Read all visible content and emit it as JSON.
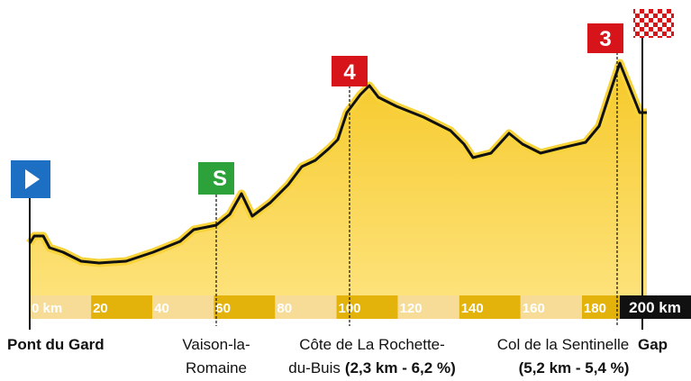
{
  "profile": {
    "scale": [
      "0 km",
      "20",
      "40",
      "60",
      "80",
      "100",
      "120",
      "140",
      "160",
      "180"
    ],
    "finish_distance": "200 km",
    "markers": {
      "sprint": "S",
      "climb_1": "4",
      "climb_2": "3"
    },
    "places": {
      "start": "Pont du Gard",
      "sprint": [
        "Vaison-la-",
        "Romaine"
      ],
      "climb_1": [
        "Côte de La Rochette-",
        "du-Buis",
        "(2,3 km - 6,2 %)"
      ],
      "climb_2": [
        "Col de la Sentinelle",
        "(5,2 km - 5,4 %)"
      ],
      "finish": "Gap"
    }
  }
}
